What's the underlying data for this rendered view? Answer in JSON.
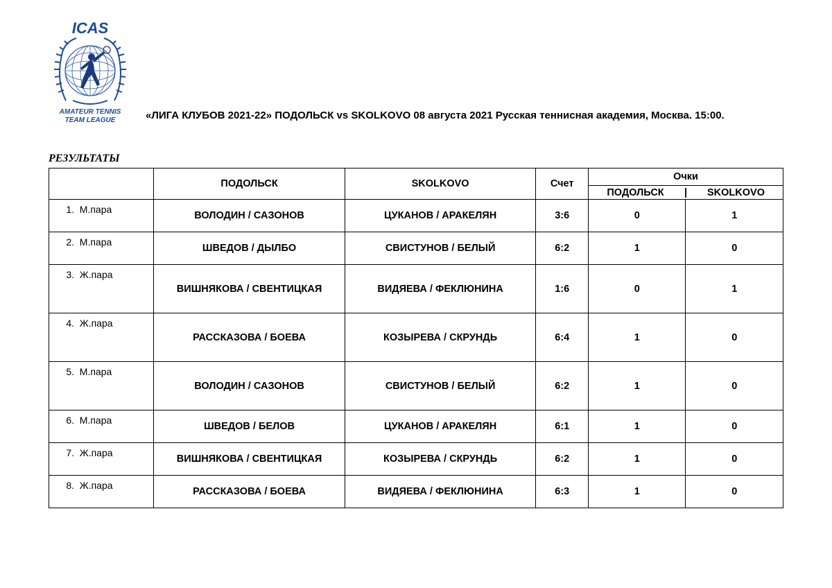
{
  "logo": {
    "top_text": "ICAS",
    "bottom_text1": "AMATEUR TENNIS",
    "bottom_text2": "TEAM LEAGUE",
    "wreath_color": "#1a4b9c",
    "globe_color": "#2e5aa8",
    "player_color": "#1a3a7a"
  },
  "title": "«ЛИГА КЛУБОВ 2021-22»   ПОДОЛЬСК vs SKOLKOVO 08 августа 2021 Русская теннисная академия, Москва. 15:00.",
  "section_title": "РЕЗУЛЬТАТЫ",
  "table": {
    "columns": {
      "blank": "",
      "team_a": "ПОДОЛЬСК",
      "team_b": "SKOLKOVO",
      "score": "Счет",
      "points": "Очки",
      "points_a": "ПОДОЛЬСК",
      "points_sep": "|",
      "points_b": "SKOLKOVO"
    },
    "rows": [
      {
        "idx": "1.",
        "cat": "М.пара",
        "a": "ВОЛОДИН / САЗОНОВ",
        "b": "ЦУКАНОВ / АРАКЕЛЯН",
        "score": "3:6",
        "pa": "0",
        "pb": "1",
        "tall": false
      },
      {
        "idx": "2.",
        "cat": "М.пара",
        "a": "ШВЕДОВ / ДЫЛБО",
        "b": "СВИСТУНОВ / БЕЛЫЙ",
        "score": "6:2",
        "pa": "1",
        "pb": "0",
        "tall": false
      },
      {
        "idx": "3.",
        "cat": "Ж.пара",
        "a": "ВИШНЯКОВА / СВЕНТИЦКАЯ",
        "b": "ВИДЯЕВА / ФЕКЛЮНИНА",
        "score": "1:6",
        "pa": "0",
        "pb": "1",
        "tall": true
      },
      {
        "idx": "4.",
        "cat": "Ж.пара",
        "a": "РАССКАЗОВА / БОЕВА",
        "b": "КОЗЫРЕВА / СКРУНДЬ",
        "score": "6:4",
        "pa": "1",
        "pb": "0",
        "tall": true
      },
      {
        "idx": "5.",
        "cat": "М.пара",
        "a": "ВОЛОДИН / САЗОНОВ",
        "b": "СВИСТУНОВ / БЕЛЫЙ",
        "score": "6:2",
        "pa": "1",
        "pb": "0",
        "tall": true
      },
      {
        "idx": "6.",
        "cat": "М.пара",
        "a": "ШВЕДОВ / БЕЛОВ",
        "b": "ЦУКАНОВ / АРАКЕЛЯН",
        "score": "6:1",
        "pa": "1",
        "pb": "0",
        "tall": false
      },
      {
        "idx": "7.",
        "cat": "Ж.пара",
        "a": "ВИШНЯКОВА / СВЕНТИЦКАЯ",
        "b": "КОЗЫРЕВА / СКРУНДЬ",
        "score": "6:2",
        "pa": "1",
        "pb": "0",
        "tall": false
      },
      {
        "idx": "8.",
        "cat": "Ж.пара",
        "a": "РАССКАЗОВА / БОЕВА",
        "b": "ВИДЯЕВА / ФЕКЛЮНИНА",
        "score": "6:3",
        "pa": "1",
        "pb": "0",
        "tall": false
      }
    ]
  },
  "style": {
    "border_color": "#000000",
    "text_color": "#000000",
    "background": "#ffffff",
    "title_fontsize": 15,
    "cell_fontsize": 14.5
  }
}
